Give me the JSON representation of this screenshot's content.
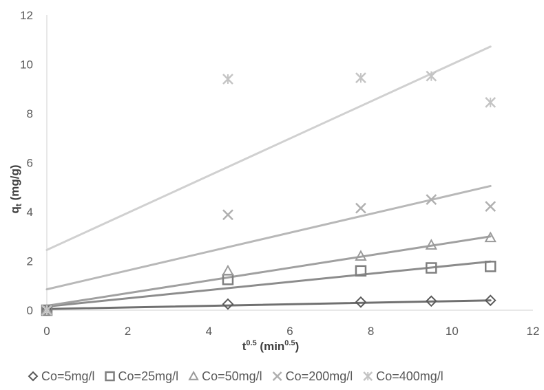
{
  "chart_data": {
    "type": "scatter",
    "xlabel": "t",
    "xlabel_sup": "0.5",
    "xlabel_unit": " (min",
    "xlabel_unit_sup": "0.5",
    "xlabel_close": ")",
    "ylabel": "q",
    "ylabel_sub": "t",
    "ylabel_unit": " (mg/g)",
    "xlim": [
      0,
      12
    ],
    "ylim": [
      0,
      12
    ],
    "x_ticks": [
      "0",
      "2",
      "4",
      "6",
      "8",
      "10",
      "12"
    ],
    "y_ticks": [
      "0",
      "2",
      "4",
      "6",
      "8",
      "10",
      "12"
    ],
    "grid": false,
    "legend": "bottom",
    "series": [
      {
        "name": "Co=5mg/l",
        "marker": "diamond",
        "color": "#595959",
        "line_color": "#707070",
        "x": [
          0,
          4.47,
          7.75,
          9.49,
          10.95
        ],
        "y": [
          0,
          0.25,
          0.33,
          0.37,
          0.4
        ],
        "trend": [
          0.05,
          0.4
        ]
      },
      {
        "name": "Co=25mg/l",
        "marker": "square",
        "color": "#7f7f7f",
        "line_color": "#8c8c8c",
        "x": [
          0,
          4.47,
          7.75,
          9.49,
          10.95
        ],
        "y": [
          0,
          1.25,
          1.6,
          1.72,
          1.78
        ],
        "trend": [
          0.15,
          1.98
        ]
      },
      {
        "name": "Co=50mg/l",
        "marker": "triangle",
        "color": "#9a9a9a",
        "line_color": "#a0a0a0",
        "x": [
          0,
          4.47,
          7.75,
          9.49,
          10.95
        ],
        "y": [
          0,
          1.6,
          2.2,
          2.65,
          2.95
        ],
        "trend": [
          0.18,
          3.0
        ]
      },
      {
        "name": "Co=200mg/l",
        "marker": "x",
        "color": "#b0b0b0",
        "line_color": "#b8b8b8",
        "x": [
          0,
          4.47,
          7.75,
          9.49,
          10.95
        ],
        "y": [
          0,
          3.88,
          4.15,
          4.5,
          4.22
        ],
        "trend": [
          0.85,
          5.05
        ]
      },
      {
        "name": "Co=400mg/l",
        "marker": "asterisk",
        "color": "#c4c4c4",
        "line_color": "#d0d0d0",
        "x": [
          0,
          4.47,
          7.75,
          9.49,
          10.95
        ],
        "y": [
          0,
          9.4,
          9.45,
          9.52,
          8.45
        ],
        "trend": [
          2.45,
          10.72
        ]
      }
    ]
  }
}
